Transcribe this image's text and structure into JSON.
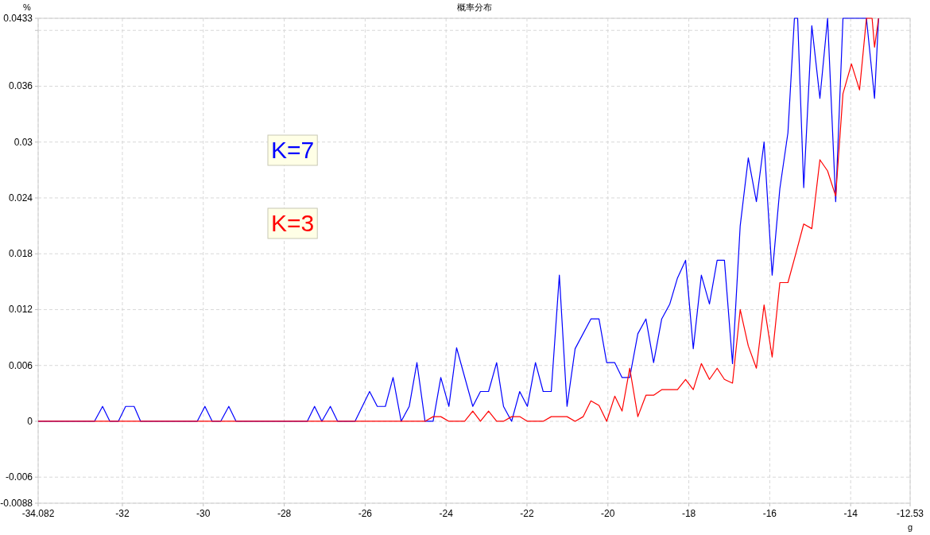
{
  "chart_data": {
    "type": "line",
    "title": "概率分布",
    "xlabel": "g",
    "ylabel": "%",
    "xlim": [
      -34.082,
      -12.53
    ],
    "ylim": [
      -0.0088,
      0.0433
    ],
    "xticks": [
      -34.082,
      -32,
      -30,
      -28,
      -26,
      -24,
      -22,
      -20,
      -18,
      -16,
      -14,
      -12.53
    ],
    "yticks": [
      -0.0088,
      -0.006,
      0,
      0.006,
      0.012,
      0.018,
      0.024,
      0.03,
      0.036,
      {
        "value": 0.042,
        "label": null
      },
      0.0433
    ],
    "grid": true,
    "legend": "left",
    "marker": "none",
    "line_style": "solid",
    "series": [
      {
        "name": "K=7",
        "color": "#0000ff",
        "x": [
          -34.082,
          -32.69,
          -32.49,
          -32.31,
          -32.1,
          -31.92,
          -31.71,
          -31.55,
          -30.15,
          -29.96,
          -29.78,
          -29.57,
          -29.37,
          -29.19,
          -27.43,
          -27.25,
          -27.07,
          -26.86,
          -26.68,
          -26.25,
          -25.89,
          -25.7,
          -25.5,
          -25.31,
          -25.11,
          -24.91,
          -24.72,
          -24.52,
          -24.32,
          -24.13,
          -23.93,
          -23.74,
          -23.34,
          -23.15,
          -22.95,
          -22.75,
          -22.58,
          -22.38,
          -22.18,
          -21.99,
          -21.79,
          -21.6,
          -21.4,
          -21.2,
          -21.01,
          -20.81,
          -20.42,
          -20.22,
          -20.03,
          -19.83,
          -19.65,
          -19.46,
          -19.26,
          -19.06,
          -18.87,
          -18.67,
          -18.47,
          -18.28,
          -18.08,
          -17.89,
          -17.69,
          -17.49,
          -17.3,
          -17.12,
          -16.92,
          -16.73,
          -16.53,
          -16.33,
          -16.14,
          -15.94,
          -15.75,
          -15.55,
          -15.39,
          -15.31,
          -15.16,
          -14.96,
          -14.76,
          -14.57,
          -14.37,
          -14.19,
          -13.61,
          -13.41,
          -13.31
        ],
        "values": [
          0,
          0,
          0.0016,
          0,
          0,
          0.0016,
          0.0016,
          0,
          0,
          0.0016,
          0,
          0,
          0.0016,
          0,
          0,
          0.0016,
          0,
          0.0016,
          0,
          0,
          0.0032,
          0.0016,
          0.0016,
          0.0047,
          0,
          0.0016,
          0.0063,
          0,
          0,
          0.0047,
          0.0016,
          0.0079,
          0.0016,
          0.0032,
          0.0032,
          0.0063,
          0.0016,
          0,
          0.0032,
          0.0016,
          0.0063,
          0.0032,
          0.0032,
          0.0157,
          0.0016,
          0.0078,
          0.011,
          0.011,
          0.0063,
          0.0063,
          0.0047,
          0.0047,
          0.0094,
          0.011,
          0.0063,
          0.011,
          0.0126,
          0.0154,
          0.0173,
          0.0078,
          0.0157,
          0.0126,
          0.0173,
          0.0173,
          0.0062,
          0.021,
          0.0283,
          0.0236,
          0.03,
          0.0157,
          0.025,
          0.031,
          0.0433,
          0.0433,
          0.0251,
          0.0425,
          0.0347,
          0.0433,
          0.0236,
          0.0433,
          0.0433,
          0.0347,
          0.0433
        ]
      },
      {
        "name": "K=3",
        "color": "#ff0000",
        "x": [
          -34.082,
          -24.52,
          -24.32,
          -24.13,
          -23.93,
          -23.54,
          -23.34,
          -23.15,
          -22.95,
          -22.75,
          -22.58,
          -22.38,
          -22.18,
          -21.99,
          -21.6,
          -21.4,
          -21.01,
          -20.81,
          -20.61,
          -20.42,
          -20.22,
          -20.03,
          -19.83,
          -19.65,
          -19.46,
          -19.26,
          -19.06,
          -18.87,
          -18.67,
          -18.28,
          -18.08,
          -17.89,
          -17.69,
          -17.49,
          -17.3,
          -17.12,
          -16.92,
          -16.73,
          -16.53,
          -16.33,
          -16.14,
          -15.94,
          -15.75,
          -15.55,
          -15.35,
          -15.16,
          -14.96,
          -14.76,
          -14.57,
          -14.37,
          -14.19,
          -13.98,
          -13.78,
          -13.61,
          -13.47,
          -13.41,
          -13.31
        ],
        "values": [
          0,
          0,
          0.0005,
          0.0005,
          0,
          0,
          0.0011,
          0,
          0.0011,
          0,
          0,
          0.0005,
          0.0005,
          0,
          0,
          0.0005,
          0.0005,
          0,
          0.0005,
          0.0022,
          0.0017,
          0,
          0.0027,
          0.0011,
          0.0057,
          0.0005,
          0.0028,
          0.0028,
          0.0034,
          0.0034,
          0.0045,
          0.0034,
          0.0062,
          0.0045,
          0.0057,
          0.0045,
          0.0041,
          0.012,
          0.0081,
          0.0057,
          0.0125,
          0.0069,
          0.0149,
          0.0149,
          0.0181,
          0.0212,
          0.0207,
          0.0281,
          0.0269,
          0.0242,
          0.0352,
          0.0384,
          0.0356,
          0.0433,
          0.0433,
          0.0402,
          0.0433
        ]
      }
    ]
  }
}
